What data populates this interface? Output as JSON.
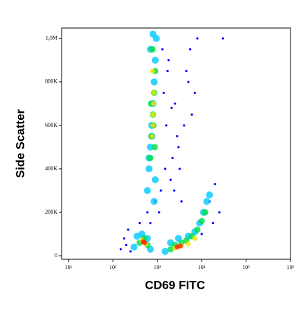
{
  "chart_data": {
    "type": "scatter",
    "x_label": "CD69 FITC",
    "y_label": "Side Scatter",
    "x_scale": "log",
    "xlim": [
      7,
      1000000
    ],
    "ylim": [
      -16000,
      1048000
    ],
    "xticks": [
      {
        "value": 10,
        "label": "10¹"
      },
      {
        "value": 100,
        "label": "10²"
      },
      {
        "value": 1000,
        "label": "10³"
      },
      {
        "value": 10000,
        "label": "10⁴"
      },
      {
        "value": 100000,
        "label": "10⁵"
      },
      {
        "value": 1000000,
        "label": "10⁶"
      }
    ],
    "yticks": [
      0,
      {
        "value": 200000,
        "label": "200K"
      },
      {
        "value": 400000,
        "label": "400K"
      },
      {
        "value": 600000,
        "label": "600K"
      },
      {
        "value": 800000,
        "label": "800K"
      },
      {
        "value": 1000000,
        "label": "1,0M"
      }
    ],
    "series": [
      {
        "color": "#0000ff",
        "x": [
          150,
          200,
          250,
          180,
          220,
          400,
          1200,
          1500,
          2000,
          3000,
          4000,
          5000,
          2500,
          1800,
          6000,
          8000,
          3500,
          1300,
          2200,
          2800,
          900,
          1100,
          4500,
          7000,
          1600,
          2400,
          3200,
          5500,
          12000,
          15000,
          20000,
          25000,
          18000,
          10000,
          30000,
          600,
          700,
          1400,
          1700,
          2100
        ],
        "y": [
          30000,
          50000,
          20000,
          80000,
          120000,
          150000,
          300000,
          400000,
          350000,
          500000,
          600000,
          800000,
          700000,
          900000,
          650000,
          1000000,
          250000,
          950000,
          450000,
          550000,
          250000,
          200000,
          850000,
          750000,
          600000,
          300000,
          400000,
          950000,
          200000,
          250000,
          330000,
          200000,
          150000,
          100000,
          1000000,
          200000,
          150000,
          750000,
          850000,
          680000
        ]
      },
      {
        "color": "#00c8ff",
        "x": [
          600,
          650,
          700,
          750,
          800,
          850,
          900,
          950,
          700,
          800,
          900,
          650,
          750,
          850,
          300,
          350,
          450,
          600,
          700,
          1500,
          2000,
          3000,
          5000,
          7000,
          9000,
          11000,
          13000,
          15000
        ],
        "y": [
          300000,
          400000,
          500000,
          600000,
          700000,
          800000,
          900000,
          1000000,
          950000,
          1020000,
          350000,
          450000,
          550000,
          250000,
          40000,
          90000,
          100000,
          80000,
          30000,
          20000,
          60000,
          80000,
          90000,
          110000,
          150000,
          200000,
          250000,
          280000
        ]
      },
      {
        "color": "#00e040",
        "x": [
          700,
          750,
          800,
          850,
          900,
          780,
          820,
          720,
          880,
          400,
          500,
          600,
          2000,
          2500,
          3500,
          4500,
          6000,
          8000,
          10000,
          12000
        ],
        "y": [
          450000,
          550000,
          650000,
          750000,
          850000,
          950000,
          600000,
          700000,
          500000,
          60000,
          80000,
          50000,
          30000,
          50000,
          60000,
          70000,
          90000,
          120000,
          160000,
          200000
        ]
      },
      {
        "color": "#ffe000",
        "x": [
          760,
          800,
          840,
          780,
          820,
          800,
          450,
          550,
          2500,
          3500,
          5000,
          7000
        ],
        "y": [
          550000,
          650000,
          750000,
          850000,
          700000,
          600000,
          70000,
          55000,
          35000,
          45000,
          55000,
          80000
        ]
      },
      {
        "color": "#ff2000",
        "x": [
          480,
          520,
          2800,
          3300
        ],
        "y": [
          65000,
          60000,
          40000,
          45000
        ]
      }
    ]
  }
}
